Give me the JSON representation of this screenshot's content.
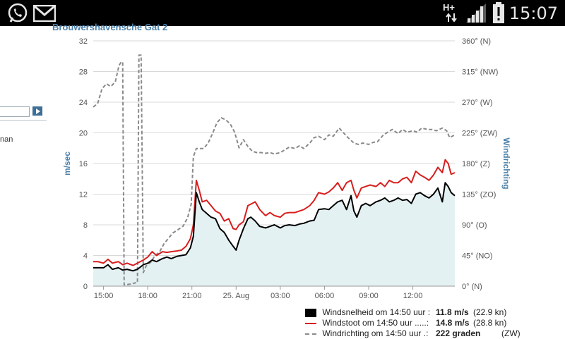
{
  "status_bar": {
    "time": "15:07",
    "network": "H+",
    "icons": [
      "whatsapp-icon",
      "gmail-icon",
      "signal-icon",
      "battery-alert-icon"
    ]
  },
  "left_panel": {
    "text_fragment": "nan"
  },
  "chart_title": "Brouwershavensche Gat 2",
  "chart_data": {
    "type": "line",
    "title": "Brouwershavensche Gat 2",
    "ylabel": "m/sec",
    "y2label": "Windrichting",
    "ylim": [
      0,
      32
    ],
    "y2lim": [
      0,
      360
    ],
    "y_ticks": [
      "0",
      "4",
      "8",
      "12",
      "16",
      "20",
      "24",
      "28",
      "32"
    ],
    "y2_ticks": [
      "0° (N)",
      "45° (NO)",
      "90° (O)",
      "135° (ZO)",
      "180° (Z)",
      "225° (ZW)",
      "270° (W)",
      "315° (NW)",
      "360° (N)"
    ],
    "x_ticks": [
      "15:00",
      "18:00",
      "21:00",
      "25. Aug",
      "03:00",
      "06:00",
      "09:00",
      "12:00"
    ],
    "x_range_hours": [
      14.3,
      38.85
    ],
    "grid": true,
    "series": [
      {
        "name": "Windsnelheid",
        "axis": "left",
        "color": "#000000",
        "area": true,
        "points": [
          [
            14.3,
            2.4
          ],
          [
            14.6,
            2.4
          ],
          [
            15.0,
            2.4
          ],
          [
            15.3,
            2.8
          ],
          [
            15.6,
            2.2
          ],
          [
            16.0,
            2.4
          ],
          [
            16.3,
            2.1
          ],
          [
            16.6,
            2.2
          ],
          [
            17.0,
            2.0
          ],
          [
            17.3,
            2.2
          ],
          [
            17.7,
            2.8
          ],
          [
            18.0,
            3.0
          ],
          [
            18.3,
            3.4
          ],
          [
            18.6,
            3.2
          ],
          [
            19.0,
            3.6
          ],
          [
            19.3,
            3.8
          ],
          [
            19.6,
            3.6
          ],
          [
            20.0,
            3.9
          ],
          [
            20.3,
            4.0
          ],
          [
            20.6,
            4.1
          ],
          [
            20.9,
            5.0
          ],
          [
            21.1,
            6.5
          ],
          [
            21.3,
            12.2
          ],
          [
            21.5,
            11.0
          ],
          [
            21.7,
            10.0
          ],
          [
            22.0,
            9.5
          ],
          [
            22.3,
            9.0
          ],
          [
            22.6,
            8.8
          ],
          [
            22.9,
            7.5
          ],
          [
            23.2,
            7.0
          ],
          [
            23.5,
            6.0
          ],
          [
            23.8,
            5.2
          ],
          [
            24.0,
            4.7
          ],
          [
            24.2,
            6.0
          ],
          [
            24.5,
            7.5
          ],
          [
            24.8,
            8.8
          ],
          [
            25.0,
            9.0
          ],
          [
            25.3,
            8.5
          ],
          [
            25.6,
            7.8
          ],
          [
            26.0,
            7.6
          ],
          [
            26.3,
            7.8
          ],
          [
            26.6,
            8.0
          ],
          [
            27.0,
            7.6
          ],
          [
            27.3,
            7.9
          ],
          [
            27.6,
            8.0
          ],
          [
            28.0,
            7.9
          ],
          [
            28.3,
            8.1
          ],
          [
            28.6,
            8.2
          ],
          [
            29.0,
            8.5
          ],
          [
            29.3,
            8.6
          ],
          [
            29.6,
            10.0
          ],
          [
            30.0,
            10.1
          ],
          [
            30.3,
            10.0
          ],
          [
            30.6,
            10.5
          ],
          [
            30.9,
            11.0
          ],
          [
            31.2,
            11.2
          ],
          [
            31.5,
            10.0
          ],
          [
            31.8,
            11.8
          ],
          [
            32.0,
            9.8
          ],
          [
            32.2,
            9.0
          ],
          [
            32.5,
            10.5
          ],
          [
            32.8,
            10.8
          ],
          [
            33.1,
            10.5
          ],
          [
            33.5,
            11.0
          ],
          [
            33.8,
            11.2
          ],
          [
            34.1,
            11.5
          ],
          [
            34.4,
            11.0
          ],
          [
            34.7,
            11.2
          ],
          [
            35.0,
            11.5
          ],
          [
            35.3,
            11.2
          ],
          [
            35.6,
            11.3
          ],
          [
            35.9,
            10.8
          ],
          [
            36.2,
            12.0
          ],
          [
            36.5,
            12.2
          ],
          [
            36.8,
            11.8
          ],
          [
            37.1,
            11.5
          ],
          [
            37.4,
            12.0
          ],
          [
            37.7,
            12.8
          ],
          [
            38.0,
            11.0
          ],
          [
            38.2,
            13.5
          ],
          [
            38.4,
            13.0
          ],
          [
            38.6,
            12.2
          ],
          [
            38.85,
            11.8
          ]
        ]
      },
      {
        "name": "Windstoot",
        "axis": "left",
        "color": "#d81e1e",
        "area": false,
        "points": [
          [
            14.3,
            3.2
          ],
          [
            14.6,
            3.2
          ],
          [
            15.0,
            3.0
          ],
          [
            15.3,
            3.5
          ],
          [
            15.6,
            3.0
          ],
          [
            16.0,
            3.2
          ],
          [
            16.3,
            2.8
          ],
          [
            16.6,
            3.0
          ],
          [
            17.0,
            2.7
          ],
          [
            17.3,
            3.0
          ],
          [
            17.7,
            3.4
          ],
          [
            18.0,
            3.8
          ],
          [
            18.3,
            4.5
          ],
          [
            18.6,
            4.0
          ],
          [
            19.0,
            4.5
          ],
          [
            19.3,
            4.4
          ],
          [
            19.6,
            4.5
          ],
          [
            20.0,
            4.6
          ],
          [
            20.3,
            4.7
          ],
          [
            20.6,
            5.2
          ],
          [
            20.9,
            6.2
          ],
          [
            21.1,
            8.0
          ],
          [
            21.3,
            13.8
          ],
          [
            21.5,
            12.5
          ],
          [
            21.7,
            11.0
          ],
          [
            22.0,
            11.2
          ],
          [
            22.3,
            10.5
          ],
          [
            22.6,
            9.8
          ],
          [
            22.9,
            9.5
          ],
          [
            23.2,
            8.5
          ],
          [
            23.5,
            8.8
          ],
          [
            23.8,
            7.5
          ],
          [
            24.0,
            7.4
          ],
          [
            24.2,
            8.0
          ],
          [
            24.5,
            8.4
          ],
          [
            24.8,
            10.5
          ],
          [
            25.0,
            10.7
          ],
          [
            25.3,
            11.0
          ],
          [
            25.6,
            10.0
          ],
          [
            26.0,
            9.2
          ],
          [
            26.3,
            9.6
          ],
          [
            26.6,
            9.2
          ],
          [
            27.0,
            9.0
          ],
          [
            27.3,
            9.5
          ],
          [
            27.6,
            9.6
          ],
          [
            28.0,
            9.6
          ],
          [
            28.3,
            9.8
          ],
          [
            28.6,
            10.0
          ],
          [
            29.0,
            10.5
          ],
          [
            29.3,
            11.2
          ],
          [
            29.6,
            12.2
          ],
          [
            30.0,
            12.0
          ],
          [
            30.3,
            12.3
          ],
          [
            30.6,
            12.8
          ],
          [
            30.9,
            13.5
          ],
          [
            31.2,
            12.5
          ],
          [
            31.5,
            13.5
          ],
          [
            31.8,
            13.8
          ],
          [
            32.0,
            12.5
          ],
          [
            32.2,
            11.5
          ],
          [
            32.5,
            12.8
          ],
          [
            32.8,
            13.0
          ],
          [
            33.1,
            13.2
          ],
          [
            33.5,
            13.0
          ],
          [
            33.8,
            13.5
          ],
          [
            34.1,
            13.0
          ],
          [
            34.4,
            13.8
          ],
          [
            34.7,
            13.5
          ],
          [
            35.0,
            13.5
          ],
          [
            35.3,
            14.0
          ],
          [
            35.6,
            14.2
          ],
          [
            35.9,
            13.5
          ],
          [
            36.2,
            15.0
          ],
          [
            36.5,
            14.5
          ],
          [
            36.8,
            14.2
          ],
          [
            37.1,
            13.8
          ],
          [
            37.4,
            14.5
          ],
          [
            37.7,
            15.5
          ],
          [
            38.0,
            14.8
          ],
          [
            38.2,
            16.5
          ],
          [
            38.4,
            16.0
          ],
          [
            38.6,
            14.6
          ],
          [
            38.85,
            14.8
          ]
        ]
      },
      {
        "name": "Windrichting",
        "axis": "right",
        "color": "#8a8a8a",
        "dashed": true,
        "points": [
          [
            14.3,
            263
          ],
          [
            14.6,
            268
          ],
          [
            14.9,
            290
          ],
          [
            15.2,
            297
          ],
          [
            15.5,
            293
          ],
          [
            15.8,
            300
          ],
          [
            16.05,
            324
          ],
          [
            16.2,
            329
          ],
          [
            16.3,
            329
          ],
          [
            16.4,
            2
          ],
          [
            16.5,
            2
          ],
          [
            16.8,
            3
          ],
          [
            17.2,
            5
          ],
          [
            17.3,
            5
          ],
          [
            17.4,
            339
          ],
          [
            17.55,
            339
          ],
          [
            17.7,
            20
          ],
          [
            17.9,
            30
          ],
          [
            18.2,
            35
          ],
          [
            18.5,
            45
          ],
          [
            18.8,
            50
          ],
          [
            19.1,
            62
          ],
          [
            19.4,
            70
          ],
          [
            19.7,
            78
          ],
          [
            20.0,
            82
          ],
          [
            20.4,
            88
          ],
          [
            20.7,
            100
          ],
          [
            20.95,
            120
          ],
          [
            21.1,
            190
          ],
          [
            21.3,
            202
          ],
          [
            21.8,
            202
          ],
          [
            22.1,
            210
          ],
          [
            22.4,
            224
          ],
          [
            22.7,
            240
          ],
          [
            23.0,
            247
          ],
          [
            23.3,
            244
          ],
          [
            23.6,
            238
          ],
          [
            23.9,
            226
          ],
          [
            24.2,
            203
          ],
          [
            24.5,
            215
          ],
          [
            24.8,
            205
          ],
          [
            25.1,
            198
          ],
          [
            25.4,
            196
          ],
          [
            25.7,
            196
          ],
          [
            26.0,
            195
          ],
          [
            26.3,
            196
          ],
          [
            26.6,
            194
          ],
          [
            27.0,
            196
          ],
          [
            27.3,
            200
          ],
          [
            27.6,
            204
          ],
          [
            28.0,
            202
          ],
          [
            28.3,
            206
          ],
          [
            28.6,
            202
          ],
          [
            29.0,
            210
          ],
          [
            29.3,
            218
          ],
          [
            29.6,
            220
          ],
          [
            30.0,
            215
          ],
          [
            30.3,
            222
          ],
          [
            30.6,
            220
          ],
          [
            31.0,
            232
          ],
          [
            31.3,
            225
          ],
          [
            31.6,
            218
          ],
          [
            32.0,
            210
          ],
          [
            32.3,
            208
          ],
          [
            32.6,
            210
          ],
          [
            33.0,
            208
          ],
          [
            33.3,
            211
          ],
          [
            33.6,
            212
          ],
          [
            34.0,
            222
          ],
          [
            34.3,
            226
          ],
          [
            34.6,
            230
          ],
          [
            35.0,
            224
          ],
          [
            35.3,
            230
          ],
          [
            35.6,
            226
          ],
          [
            36.0,
            228
          ],
          [
            36.3,
            226
          ],
          [
            36.6,
            232
          ],
          [
            37.0,
            230
          ],
          [
            37.3,
            230
          ],
          [
            37.6,
            228
          ],
          [
            38.0,
            232
          ],
          [
            38.3,
            228
          ],
          [
            38.5,
            218
          ],
          [
            38.85,
            222
          ]
        ]
      }
    ]
  },
  "legend": [
    {
      "label": "Windsnelheid om 14:50 uur :",
      "value": "11.8 m/s",
      "extra": "(22.9 kn)",
      "style": "black-box"
    },
    {
      "label": "Windstoot om 14:50 uur .....:",
      "value": "14.8 m/s",
      "extra": "(28.8 kn)",
      "style": "red-line"
    },
    {
      "label": "Windrichting om 14:50 uur .:",
      "value": "222 graden",
      "extra": "(ZW)",
      "style": "grey-dash"
    }
  ],
  "colors": {
    "axis_label": "#4a7fa8",
    "area_fill": "#e4f1f3",
    "grid": "#d9d9d9"
  }
}
